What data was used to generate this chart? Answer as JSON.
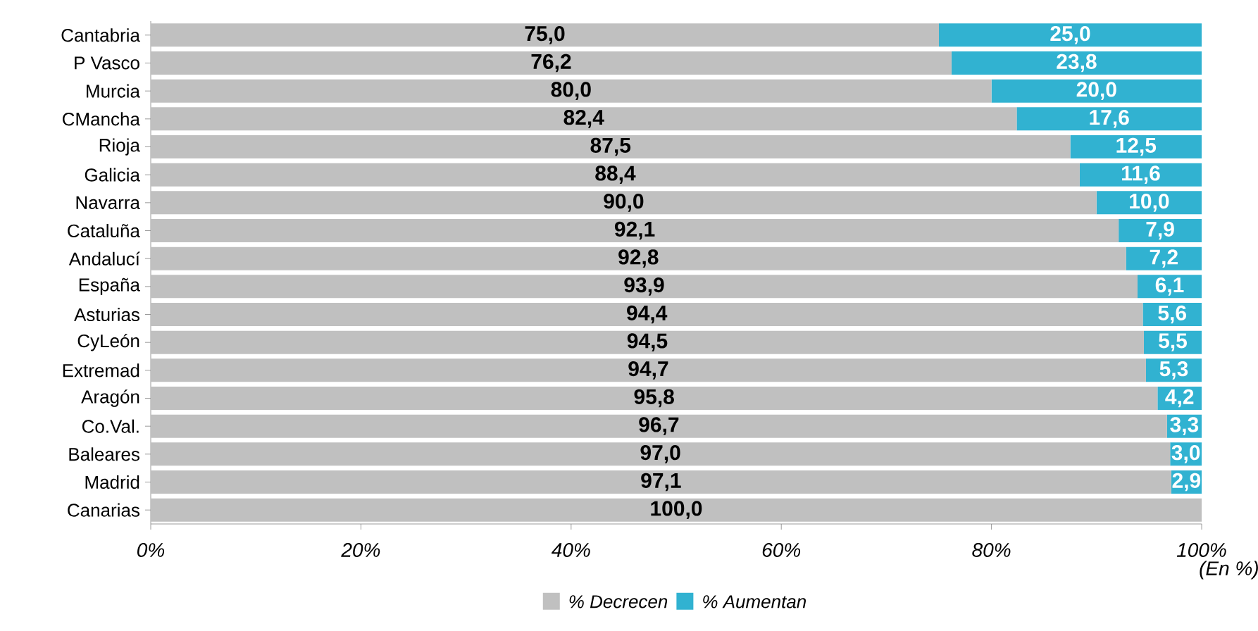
{
  "chart_data": {
    "type": "bar",
    "orientation": "horizontal",
    "stacked": true,
    "categories": [
      "Cantabria",
      "P Vasco",
      "Murcia",
      "CMancha",
      "Rioja",
      "Galicia",
      "Navarra",
      "Cataluña",
      "Andalucí",
      "España",
      "Asturias",
      "CyLeón",
      "Extremad",
      "Aragón",
      "Co.Val.",
      "Baleares",
      "Madrid",
      "Canarias"
    ],
    "series": [
      {
        "name": "% Decrecen",
        "color": "#c0c0c0",
        "values": [
          75.0,
          76.2,
          80.0,
          82.4,
          87.5,
          88.4,
          90.0,
          92.1,
          92.8,
          93.9,
          94.4,
          94.5,
          94.7,
          95.8,
          96.7,
          97.0,
          97.1,
          100.0
        ],
        "value_labels": [
          "75,0",
          "76,2",
          "80,0",
          "82,4",
          "87,5",
          "88,4",
          "90,0",
          "92,1",
          "92,8",
          "93,9",
          "94,4",
          "94,5",
          "94,7",
          "95,8",
          "96,7",
          "97,0",
          "97,1",
          "100,0"
        ]
      },
      {
        "name": "% Aumentan",
        "color": "#31b2d1",
        "values": [
          25.0,
          23.8,
          20.0,
          17.6,
          12.5,
          11.6,
          10.0,
          7.9,
          7.2,
          6.1,
          5.6,
          5.5,
          5.3,
          4.2,
          3.3,
          3.0,
          2.9,
          0.0
        ],
        "value_labels": [
          "25,0",
          "23,8",
          "20,0",
          "17,6",
          "12,5",
          "11,6",
          "10,0",
          "7,9",
          "7,2",
          "6,1",
          "5,6",
          "5,5",
          "5,3",
          "4,2",
          "3,3",
          "3,0",
          "2,9",
          null
        ]
      }
    ],
    "xlim": [
      0,
      100
    ],
    "xticks": [
      {
        "value": 0,
        "label": "0%"
      },
      {
        "value": 20,
        "label": "20%"
      },
      {
        "value": 40,
        "label": "40%"
      },
      {
        "value": 60,
        "label": "60%"
      },
      {
        "value": 80,
        "label": "80%"
      },
      {
        "value": 100,
        "label": "100%"
      }
    ],
    "legend": "bottom",
    "grid": false,
    "annotations": [
      "(En %)"
    ]
  }
}
